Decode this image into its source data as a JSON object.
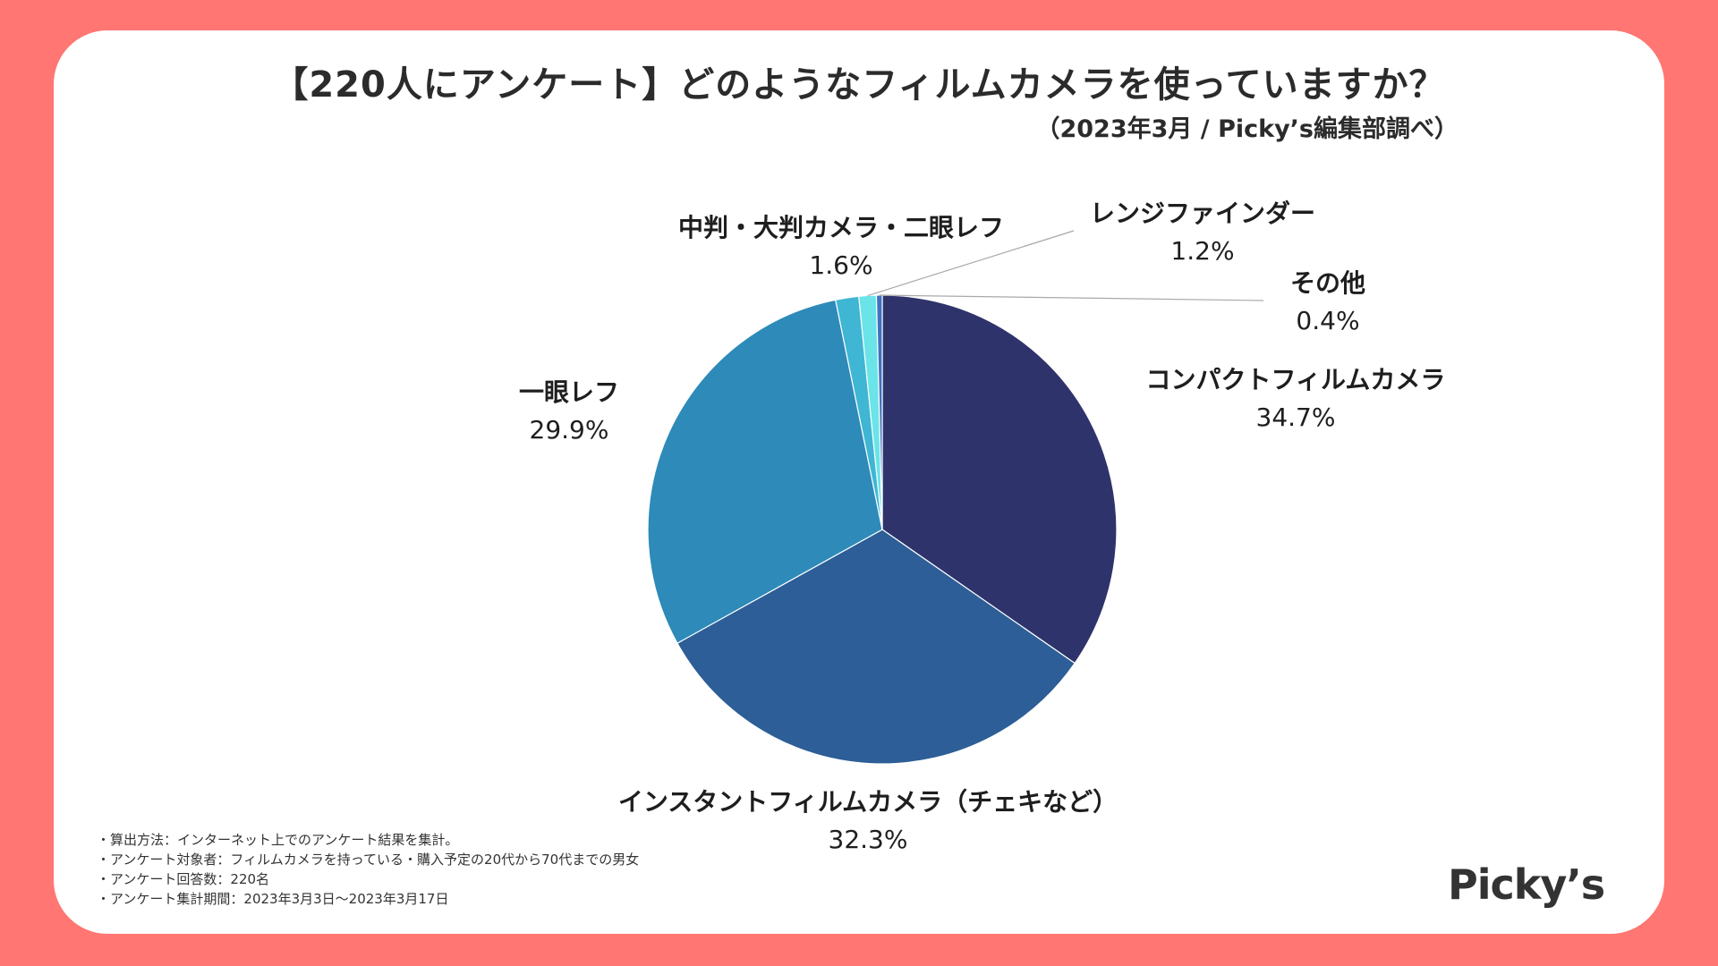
{
  "title": "【220人にアンケート】どのようなフィルムカメラを使っていますか？",
  "subtitle": "（2023年3月 / Picky’s編集部調べ）",
  "notes": [
    "・算出方法：インターネット上でのアンケート結果を集計。",
    "・アンケート対象者：フィルムカメラを持っている・購入予定の20代から70代までの男女",
    "・アンケート回答数：220名",
    "・アンケート集計期間：2023年3月3日〜2023年3月17日"
  ],
  "logo": "Picky’s",
  "chart_data": {
    "type": "pie",
    "categories": [
      "コンパクトフィルムカメラ",
      "インスタントフィルムカメラ（チェキなど）",
      "一眼レフ",
      "中判・大判カメラ・二眼レフ",
      "レンジファインダー",
      "その他"
    ],
    "values": [
      34.7,
      32.3,
      29.9,
      1.6,
      1.2,
      0.4
    ],
    "value_labels": [
      "34.7%",
      "32.3%",
      "29.9%",
      "1.6%",
      "1.2%",
      "0.4%"
    ],
    "colors": [
      "#2E336B",
      "#2D5E97",
      "#2D8AB9",
      "#3FB6D3",
      "#6AE4E8",
      "#3D72C0"
    ],
    "start": "12 o'clock",
    "direction": "clockwise",
    "legend": "none (data labels beside slices)"
  }
}
